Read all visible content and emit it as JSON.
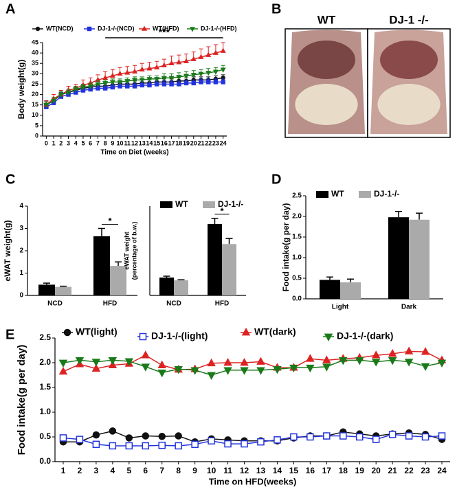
{
  "chart_data": [
    {
      "panel": "A",
      "type": "line",
      "ylabel": "Body weight(g)",
      "xlabel": "Time on Diet (weeks)",
      "x": [
        0,
        1,
        2,
        3,
        4,
        5,
        6,
        7,
        8,
        9,
        10,
        11,
        12,
        13,
        14,
        15,
        16,
        17,
        18,
        19,
        20,
        21,
        22,
        23,
        24
      ],
      "xlim": [
        -0.5,
        24.5
      ],
      "xticks": [
        0,
        1,
        2,
        3,
        4,
        5,
        6,
        7,
        8,
        9,
        10,
        11,
        12,
        13,
        14,
        15,
        16,
        17,
        18,
        19,
        20,
        21,
        22,
        23,
        24
      ],
      "ylim": [
        0,
        45
      ],
      "yticks": [
        0,
        5,
        10,
        15,
        20,
        25,
        30,
        35,
        40,
        45
      ],
      "annotation": "***",
      "annotation_span": [
        8,
        24
      ],
      "series": [
        {
          "name": "WT(NCD)",
          "color": "#111111",
          "marker": "circle",
          "filled": true,
          "values": [
            15,
            17,
            20,
            21,
            22,
            23,
            23.5,
            24,
            24,
            24.5,
            25,
            25,
            25,
            25.5,
            25.5,
            26,
            26,
            26,
            26.5,
            26.5,
            27,
            27,
            27,
            27.5,
            28
          ],
          "errors": [
            1.5,
            1.5,
            1.5,
            1.5,
            1.5,
            1.5,
            1.5,
            1.5,
            1.5,
            1.5,
            1.5,
            1.5,
            1.5,
            1.5,
            1.5,
            1.5,
            1.5,
            1.5,
            1.5,
            1.5,
            1.5,
            1.5,
            1.5,
            1.5,
            1.5
          ]
        },
        {
          "name": "DJ-1-/-(NCD)",
          "color": "#2233dd",
          "marker": "square",
          "filled": true,
          "values": [
            14,
            16,
            19,
            20,
            21,
            22,
            22.5,
            23,
            23,
            23.5,
            24,
            24,
            24,
            24.5,
            24.5,
            25,
            25,
            25,
            25,
            25.5,
            25.5,
            26,
            26,
            26,
            26
          ],
          "errors": [
            3,
            2.5,
            2,
            2,
            1.5,
            1.5,
            1.5,
            1.5,
            1.5,
            1.5,
            1.5,
            1.5,
            1.5,
            1.5,
            1.5,
            1.5,
            1.5,
            1.5,
            1.5,
            1.5,
            1.5,
            1.5,
            1.5,
            1.5,
            1.5
          ]
        },
        {
          "name": "WT(HFD)",
          "color": "#dd2222",
          "marker": "triangle-up",
          "filled": true,
          "values": [
            15,
            18,
            20,
            22,
            23,
            24.5,
            25.5,
            27,
            28,
            29,
            30,
            30.5,
            31,
            32,
            32.5,
            33,
            34,
            35,
            35.5,
            36,
            37,
            38,
            39,
            40,
            41
          ],
          "errors": [
            2,
            2,
            2,
            2,
            2,
            2.5,
            2.5,
            2.5,
            3,
            3,
            3,
            3,
            3,
            3,
            3,
            3,
            3,
            3.5,
            3.5,
            3.5,
            3.5,
            4,
            4,
            4,
            4
          ]
        },
        {
          "name": "DJ-1-/-(HFD)",
          "color": "#1a7a1a",
          "marker": "triangle-down",
          "filled": true,
          "values": [
            15,
            17,
            20,
            21,
            22.5,
            23.5,
            24,
            25,
            25.5,
            26,
            26,
            26.5,
            27,
            27,
            27.5,
            27.5,
            28,
            28,
            28.5,
            29,
            29.5,
            30,
            30.5,
            31,
            32
          ],
          "errors": [
            1.5,
            1.5,
            1.5,
            1.5,
            1.5,
            1.5,
            1.5,
            1.5,
            1.5,
            1.5,
            1.5,
            1.5,
            1.5,
            1.5,
            1.5,
            1.5,
            2,
            2,
            2,
            2,
            2,
            2,
            2,
            2,
            2
          ]
        }
      ]
    },
    {
      "panel": "B",
      "type": "image",
      "labels": [
        "WT",
        "DJ-1 -/-"
      ]
    },
    {
      "panel": "C",
      "type": "bar",
      "ylabel": [
        "eWAT weight(g)"
      ],
      "categories": [
        "NCD",
        "HFD"
      ],
      "ylim": [
        0,
        4
      ],
      "yticks": [
        0,
        1,
        2,
        3,
        4
      ],
      "annotation": "*",
      "annotation_category": 1,
      "series": [
        {
          "name": "WT",
          "color": "#000000",
          "values": [
            0.48,
            2.65
          ],
          "errors": [
            0.07,
            0.35
          ]
        },
        {
          "name": "DJ-1-/-",
          "color": "#aaaaaa",
          "values": [
            0.38,
            1.32
          ],
          "errors": [
            0.03,
            0.18
          ]
        }
      ]
    },
    {
      "type": "bar",
      "ylabel": [
        "eWAT weight",
        "(percentage of b.w.)"
      ],
      "categories": [
        "NCD",
        "HFD"
      ],
      "ylim": [
        0,
        8
      ],
      "legend": true,
      "annotation": "*",
      "annotation_category": 1,
      "series": [
        {
          "name": "WT",
          "color": "#000000",
          "values": [
            1.6,
            6.4
          ],
          "errors": [
            0.12,
            0.5
          ]
        },
        {
          "name": "DJ-1-/-",
          "color": "#aaaaaa",
          "values": [
            1.35,
            4.6
          ],
          "errors": [
            0.05,
            0.5
          ]
        }
      ]
    },
    {
      "panel": "D",
      "type": "bar",
      "ylabel": [
        "Food intake(g per day)"
      ],
      "categories": [
        "Light",
        "Dark"
      ],
      "ylim": [
        0,
        2.5
      ],
      "legend": true,
      "yticks": [
        {
          "value": 0,
          "label": "0.0"
        },
        {
          "value": 0.5,
          "label": "0.5"
        },
        {
          "value": 1,
          "label": "1.0"
        },
        {
          "value": 1.5,
          "label": "1.5"
        },
        {
          "value": 2,
          "label": "2.0"
        },
        {
          "value": 2.5,
          "label": "2.5"
        }
      ],
      "series": [
        {
          "name": "WT",
          "color": "#000000",
          "values": [
            0.46,
            1.98
          ],
          "errors": [
            0.07,
            0.14
          ]
        },
        {
          "name": "DJ-1-/-",
          "color": "#aaaaaa",
          "values": [
            0.4,
            1.92
          ],
          "errors": [
            0.08,
            0.16
          ]
        }
      ]
    },
    {
      "panel": "E",
      "type": "line",
      "ylabel": "Food intake(g per day)",
      "xlabel": "Time on HFD(weeks)",
      "x": [
        1,
        2,
        3,
        4,
        5,
        6,
        7,
        8,
        9,
        10,
        11,
        12,
        13,
        14,
        15,
        16,
        17,
        18,
        19,
        20,
        21,
        22,
        23,
        24
      ],
      "xlim": [
        0.5,
        24.5
      ],
      "xticks": [
        1,
        2,
        3,
        4,
        5,
        6,
        7,
        8,
        9,
        10,
        11,
        12,
        13,
        14,
        15,
        16,
        17,
        18,
        19,
        20,
        21,
        22,
        23,
        24
      ],
      "ylim": [
        0,
        2.5
      ],
      "yticks": [
        {
          "value": 0,
          "label": "0.0"
        },
        {
          "value": 0.5,
          "label": "0.5"
        },
        {
          "value": 1,
          "label": "1.0"
        },
        {
          "value": 1.5,
          "label": "1.5"
        },
        {
          "value": 2,
          "label": "2.0"
        },
        {
          "value": 2.5,
          "label": "2.5"
        }
      ],
      "series": [
        {
          "name": "WT(light)",
          "color": "#111111",
          "marker": "circle",
          "filled": true,
          "values": [
            0.4,
            0.4,
            0.54,
            0.62,
            0.48,
            0.52,
            0.51,
            0.52,
            0.4,
            0.46,
            0.44,
            0.42,
            0.42,
            0.42,
            0.48,
            0.52,
            0.52,
            0.6,
            0.56,
            0.52,
            0.56,
            0.58,
            0.55,
            0.45
          ]
        },
        {
          "name": "DJ-1-/-(light)",
          "color": "#2233dd",
          "marker": "square",
          "filled": false,
          "values": [
            0.48,
            0.45,
            0.35,
            0.32,
            0.32,
            0.32,
            0.33,
            0.32,
            0.35,
            0.42,
            0.36,
            0.36,
            0.4,
            0.44,
            0.5,
            0.5,
            0.52,
            0.52,
            0.5,
            0.45,
            0.55,
            0.52,
            0.5,
            0.52
          ]
        },
        {
          "name": "WT(dark)",
          "color": "#dd2222",
          "marker": "triangle-up",
          "filled": true,
          "values": [
            1.82,
            1.97,
            1.88,
            1.95,
            1.98,
            2.15,
            1.95,
            1.86,
            1.87,
            1.99,
            2,
            2,
            2.02,
            1.9,
            1.9,
            2.08,
            2.05,
            2.08,
            2.1,
            2.15,
            2.18,
            2.23,
            2.22,
            2.05
          ]
        },
        {
          "name": "DJ-1-/-(dark)",
          "color": "#1a7a1a",
          "marker": "triangle-down",
          "filled": true,
          "values": [
            2,
            2.05,
            2.02,
            2.05,
            2.03,
            1.92,
            1.8,
            1.87,
            1.85,
            1.75,
            1.85,
            1.85,
            1.85,
            1.87,
            1.9,
            1.9,
            1.92,
            2.05,
            2.05,
            2.02,
            2.05,
            2.02,
            1.93,
            2.0
          ]
        }
      ]
    }
  ]
}
